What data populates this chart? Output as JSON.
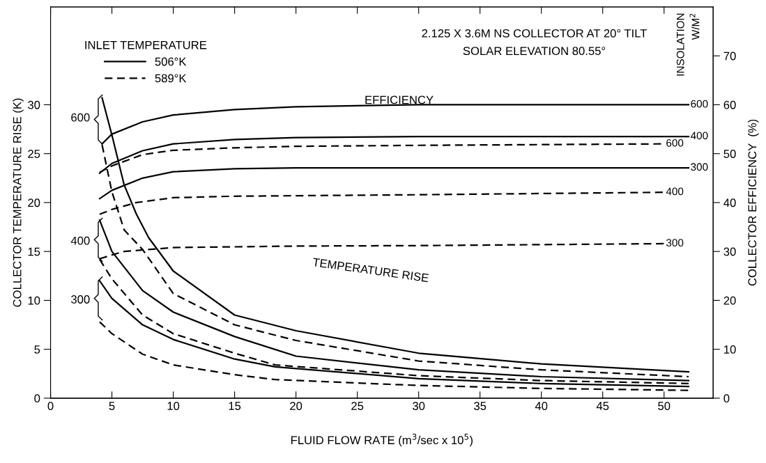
{
  "chart_data": {
    "type": "line",
    "xlabel": "FLUID FLOW RATE (m$^{3}$/sec x 10$^{5}$)",
    "ylabel": "COLLECTOR TEMPERATURE RISE (K)",
    "y2label": "COLLECTOR EFFICIENCY  (%)",
    "legend_title": "INLET TEMPERATURE",
    "xlim": [
      0,
      54
    ],
    "xticks": [
      0,
      5,
      10,
      15,
      20,
      25,
      30,
      35,
      40,
      45,
      50
    ],
    "ylim": [
      0,
      40
    ],
    "yticks": [
      0,
      5,
      10,
      15,
      20,
      25,
      30
    ],
    "y2lim": [
      0,
      80
    ],
    "y2ticks": [
      0,
      10,
      20,
      30,
      40,
      50,
      60,
      70
    ],
    "legend": "top left",
    "grid": false,
    "series": [
      {
        "name": "600",
        "axis": "y2",
        "color": "#000000",
        "line_style": "solid",
        "x": [
          4.2,
          5,
          7.5,
          10,
          15,
          20,
          30,
          52
        ],
        "values": [
          52,
          54,
          56.5,
          57.9,
          59,
          59.6,
          60,
          60
        ]
      },
      {
        "name": "400",
        "axis": "y2",
        "color": "#000000",
        "line_style": "solid",
        "x": [
          4,
          5,
          7.5,
          10,
          15,
          20,
          30,
          52
        ],
        "values": [
          46,
          48,
          50.6,
          52,
          52.9,
          53.3,
          53.5,
          53.5
        ]
      },
      {
        "name": "300",
        "axis": "y2",
        "color": "#000000",
        "line_style": "solid",
        "x": [
          4,
          5,
          7.5,
          10,
          15,
          20,
          30,
          52
        ],
        "values": [
          40.8,
          42.5,
          45,
          46.3,
          46.9,
          47.1,
          47.1,
          47.1
        ]
      },
      {
        "name": "600",
        "axis": "y2",
        "color": "#000000",
        "line_style": "dashed",
        "x": [
          4,
          5,
          7.5,
          10,
          15,
          20,
          30,
          50
        ],
        "values": [
          46.2,
          47.5,
          49.8,
          50.7,
          51.2,
          51.5,
          51.7,
          52
        ]
      },
      {
        "name": "400",
        "axis": "y2",
        "color": "#000000",
        "line_style": "dashed",
        "x": [
          4,
          5,
          7,
          10,
          15,
          20,
          30,
          50
        ],
        "values": [
          37.6,
          38.6,
          40,
          41,
          41.3,
          41.4,
          41.6,
          42.1
        ]
      },
      {
        "name": "300",
        "axis": "y2",
        "color": "#000000",
        "line_style": "dashed",
        "x": [
          4,
          5,
          6,
          10,
          20,
          30,
          50
        ],
        "values": [
          28.5,
          29.3,
          30,
          30.8,
          31.1,
          31.2,
          31.6
        ]
      },
      {
        "name": "506°K",
        "color": "#000000",
        "line_style": "solid",
        "x": [
          4.2,
          5,
          6,
          7,
          8,
          10,
          15,
          20,
          30,
          40,
          52
        ],
        "values": [
          30.7,
          26.9,
          21.8,
          18.8,
          16.4,
          13,
          8.5,
          6.9,
          4.6,
          3.5,
          2.7
        ]
      },
      {
        "name": "589°K",
        "color": "#000000",
        "line_style": "dashed",
        "x": [
          4.2,
          5,
          6,
          7.5,
          10,
          15,
          20,
          30,
          40,
          52
        ],
        "values": [
          25.9,
          21.1,
          17.2,
          15.2,
          10.7,
          7.5,
          5.9,
          3.8,
          2.9,
          2.2
        ]
      },
      {
        "color": "#000000",
        "line_style": "solid",
        "x": [
          4,
          5,
          7.5,
          10,
          15,
          20,
          30,
          40,
          52
        ],
        "values": [
          18.2,
          15,
          11,
          8.8,
          6.3,
          4.3,
          2.9,
          2.2,
          1.8
        ]
      },
      {
        "color": "#000000",
        "line_style": "dashed",
        "x": [
          4,
          5,
          7.5,
          10,
          15,
          18.3,
          30,
          40,
          52
        ],
        "values": [
          14.2,
          12.2,
          8.5,
          6.6,
          4.6,
          3.4,
          2.3,
          1.8,
          1.5
        ]
      },
      {
        "color": "#000000",
        "line_style": "solid",
        "x": [
          4,
          5,
          7.5,
          10,
          15,
          18.3,
          30,
          40,
          52
        ],
        "values": [
          12,
          10.2,
          7.5,
          6,
          4,
          3.2,
          2,
          1.5,
          1.2
        ]
      },
      {
        "color": "#000000",
        "line_style": "dashed",
        "x": [
          4,
          5,
          7.5,
          10,
          15,
          18.3,
          30,
          40,
          52
        ],
        "values": [
          7.8,
          6.6,
          4.5,
          3.4,
          2.4,
          1.9,
          1.3,
          1,
          0.8
        ]
      }
    ],
    "annotations": [
      "2.125 X 3.6M NS COLLECTOR AT 20° TILT",
      "SOLAR ELEVATION 80.55°",
      "INSOLATION",
      "W/M$^{2}$",
      "EFFICIENCY",
      "TEMPERATURE RISE",
      "600",
      "400",
      "300"
    ]
  }
}
